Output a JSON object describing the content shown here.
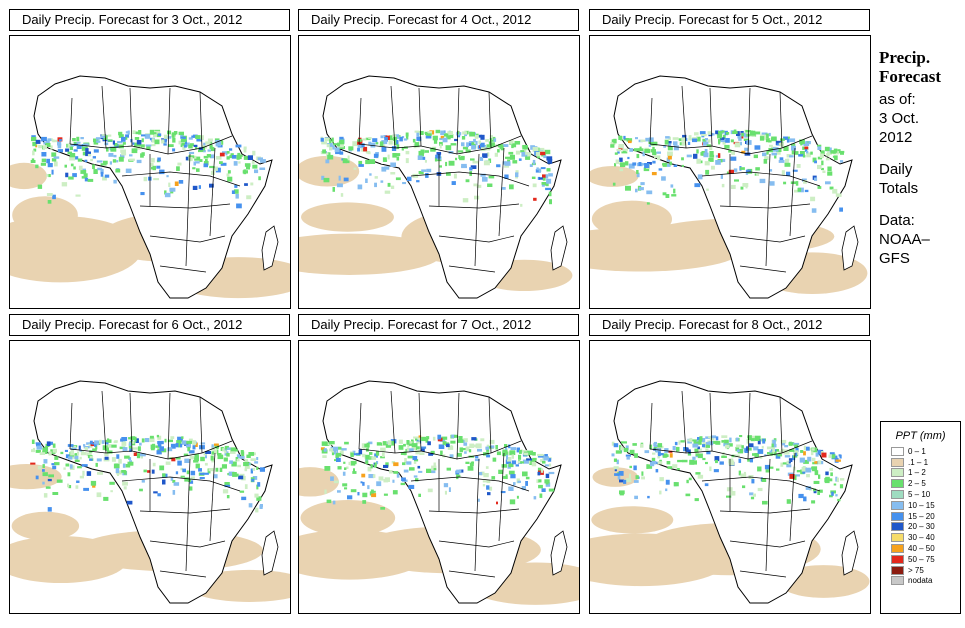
{
  "panels": [
    {
      "title": "Daily Precip. Forecast for  3 Oct., 2012",
      "forecast_day": 0
    },
    {
      "title": "Daily Precip. Forecast for  4 Oct., 2012",
      "forecast_day": 1
    },
    {
      "title": "Daily Precip. Forecast for  5 Oct., 2012",
      "forecast_day": 2
    },
    {
      "title": "Daily Precip. Forecast for  6 Oct., 2012",
      "forecast_day": 3
    },
    {
      "title": "Daily Precip. Forecast for  7 Oct., 2012",
      "forecast_day": 4
    },
    {
      "title": "Daily Precip. Forecast for  8 Oct., 2012",
      "forecast_day": 5
    }
  ],
  "sidebar": {
    "title_line1": "Precip.",
    "title_line2": "Forecast",
    "asof_label": "as of:",
    "date_line1": "3 Oct.",
    "date_line2": "2012",
    "totals_line1": "Daily",
    "totals_line2": "Totals",
    "data_line1": "Data:",
    "data_line2": "NOAA–",
    "data_line3": "GFS"
  },
  "legend": {
    "title": "PPT (mm)",
    "items": [
      {
        "label": "0 – 1",
        "color": "#ffffff"
      },
      {
        "label": ".1 – 1",
        "color": "#e9d3b1"
      },
      {
        "label": "1 – 2",
        "color": "#cdeec4"
      },
      {
        "label": "2 – 5",
        "color": "#69e06e"
      },
      {
        "label": "5 – 10",
        "color": "#9fdcc0"
      },
      {
        "label": "10 – 15",
        "color": "#86bdf0"
      },
      {
        "label": "15 – 20",
        "color": "#4691ee"
      },
      {
        "label": "20 – 30",
        "color": "#1f57c9"
      },
      {
        "label": "30 – 40",
        "color": "#f6dc6b"
      },
      {
        "label": "40 – 50",
        "color": "#f7a21c"
      },
      {
        "label": "50 – 75",
        "color": "#e3281c"
      },
      {
        "label": "> 75",
        "color": "#8c1c10"
      },
      {
        "label": "nodata",
        "color": "#c8c8c8"
      }
    ]
  }
}
